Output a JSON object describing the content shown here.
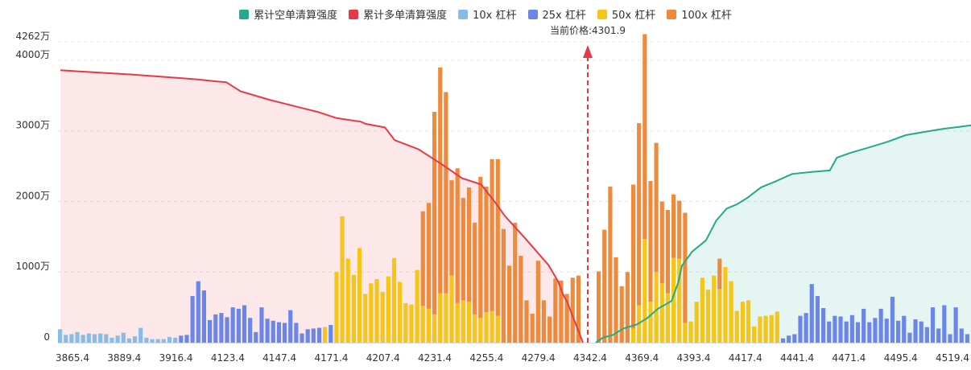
{
  "legend": [
    {
      "label": "累计空单清算强度",
      "color": "#26a98b"
    },
    {
      "label": "累计多单清算强度",
      "color": "#e63946"
    },
    {
      "label": "10x 杠杆",
      "color": "#86bde8"
    },
    {
      "label": "25x 杠杆",
      "color": "#6b86e8"
    },
    {
      "label": "50x 杠杆",
      "color": "#f5c518"
    },
    {
      "label": "100x 杠杆",
      "color": "#ee8a3c"
    }
  ],
  "current_price_label": "当前价格:4301.9",
  "chart_data": {
    "type": "bar",
    "title": "",
    "ymax_label": "4262万",
    "ylim": [
      0,
      4262
    ],
    "y_ticks": [
      {
        "value": 0,
        "label": "0"
      },
      {
        "value": 1000,
        "label": "1000万"
      },
      {
        "value": 2000,
        "label": "2000万"
      },
      {
        "value": 3000,
        "label": "3000万"
      },
      {
        "value": 4000,
        "label": "4000万"
      }
    ],
    "x_ticks": [
      "3865.4",
      "3889.4",
      "3916.4",
      "4123.4",
      "4147.4",
      "4171.4",
      "4207.4",
      "4231.4",
      "4255.4",
      "4279.4",
      "4342.4",
      "4369.4",
      "4393.4",
      "4417.4",
      "4441.4",
      "4471.4",
      "4495.4",
      "4519.4"
    ],
    "current_price": 4301.9,
    "current_price_index": 91,
    "bars": [
      {
        "s": [
          190,
          0,
          0,
          0
        ]
      },
      {
        "s": [
          110,
          0,
          0,
          0
        ]
      },
      {
        "s": [
          120,
          0,
          0,
          0
        ]
      },
      {
        "s": [
          150,
          0,
          0,
          0
        ]
      },
      {
        "s": [
          110,
          0,
          0,
          0
        ]
      },
      {
        "s": [
          130,
          0,
          0,
          0
        ]
      },
      {
        "s": [
          120,
          0,
          0,
          0
        ]
      },
      {
        "s": [
          130,
          0,
          0,
          0
        ]
      },
      {
        "s": [
          120,
          0,
          0,
          0
        ]
      },
      {
        "s": [
          70,
          0,
          0,
          0
        ]
      },
      {
        "s": [
          100,
          0,
          0,
          0
        ]
      },
      {
        "s": [
          140,
          0,
          0,
          0
        ]
      },
      {
        "s": [
          60,
          0,
          0,
          0
        ]
      },
      {
        "s": [
          90,
          0,
          0,
          0
        ]
      },
      {
        "s": [
          210,
          0,
          0,
          0
        ]
      },
      {
        "s": [
          70,
          0,
          0,
          0
        ]
      },
      {
        "s": [
          50,
          0,
          0,
          0
        ]
      },
      {
        "s": [
          50,
          0,
          0,
          0
        ]
      },
      {
        "s": [
          50,
          0,
          0,
          0
        ]
      },
      {
        "s": [
          80,
          0,
          0,
          0
        ]
      },
      {
        "s": [
          70,
          0,
          0,
          0
        ]
      },
      {
        "s": [
          0,
          100,
          0,
          0
        ]
      },
      {
        "s": [
          0,
          110,
          0,
          0
        ]
      },
      {
        "s": [
          0,
          660,
          0,
          0
        ]
      },
      {
        "s": [
          0,
          870,
          0,
          0
        ]
      },
      {
        "s": [
          0,
          740,
          0,
          0
        ]
      },
      {
        "s": [
          0,
          320,
          0,
          0
        ]
      },
      {
        "s": [
          0,
          400,
          0,
          0
        ]
      },
      {
        "s": [
          0,
          420,
          0,
          0
        ]
      },
      {
        "s": [
          0,
          360,
          0,
          0
        ]
      },
      {
        "s": [
          0,
          500,
          0,
          0
        ]
      },
      {
        "s": [
          0,
          480,
          0,
          0
        ]
      },
      {
        "s": [
          0,
          530,
          0,
          0
        ]
      },
      {
        "s": [
          0,
          350,
          0,
          0
        ]
      },
      {
        "s": [
          0,
          150,
          0,
          0
        ]
      },
      {
        "s": [
          0,
          500,
          0,
          0
        ]
      },
      {
        "s": [
          0,
          340,
          0,
          0
        ]
      },
      {
        "s": [
          0,
          310,
          0,
          0
        ]
      },
      {
        "s": [
          0,
          290,
          0,
          0
        ]
      },
      {
        "s": [
          0,
          280,
          0,
          0
        ]
      },
      {
        "s": [
          0,
          460,
          0,
          0
        ]
      },
      {
        "s": [
          0,
          280,
          0,
          0
        ]
      },
      {
        "s": [
          0,
          130,
          0,
          0
        ]
      },
      {
        "s": [
          0,
          190,
          0,
          0
        ]
      },
      {
        "s": [
          0,
          200,
          0,
          0
        ]
      },
      {
        "s": [
          0,
          210,
          0,
          0
        ]
      },
      {
        "s": [
          0,
          0,
          220,
          0
        ]
      },
      {
        "s": [
          0,
          250,
          0,
          0
        ]
      },
      {
        "s": [
          0,
          0,
          1000,
          0
        ]
      },
      {
        "s": [
          0,
          0,
          1790,
          0
        ]
      },
      {
        "s": [
          0,
          0,
          1190,
          0
        ]
      },
      {
        "s": [
          0,
          0,
          960,
          0
        ]
      },
      {
        "s": [
          0,
          0,
          1340,
          0
        ]
      },
      {
        "s": [
          0,
          0,
          690,
          0
        ]
      },
      {
        "s": [
          0,
          0,
          840,
          0
        ]
      },
      {
        "s": [
          0,
          0,
          900,
          0
        ]
      },
      {
        "s": [
          0,
          0,
          720,
          0
        ]
      },
      {
        "s": [
          0,
          0,
          940,
          0
        ]
      },
      {
        "s": [
          0,
          0,
          1200,
          0
        ]
      },
      {
        "s": [
          0,
          0,
          860,
          0
        ]
      },
      {
        "s": [
          0,
          0,
          560,
          0
        ]
      },
      {
        "s": [
          0,
          0,
          540,
          0
        ]
      },
      {
        "s": [
          0,
          0,
          1030,
          0
        ]
      },
      {
        "s": [
          0,
          0,
          520,
          1340
        ]
      },
      {
        "s": [
          0,
          0,
          480,
          1500
        ]
      },
      {
        "s": [
          0,
          0,
          400,
          2870
        ]
      },
      {
        "s": [
          0,
          0,
          700,
          3200
        ]
      },
      {
        "s": [
          0,
          0,
          700,
          2850
        ]
      },
      {
        "s": [
          0,
          0,
          950,
          1350
        ]
      },
      {
        "s": [
          0,
          0,
          560,
          1910
        ]
      },
      {
        "s": [
          0,
          0,
          600,
          1450
        ]
      },
      {
        "s": [
          0,
          0,
          580,
          1620
        ]
      },
      {
        "s": [
          0,
          0,
          400,
          1300
        ]
      },
      {
        "s": [
          0,
          0,
          350,
          2000
        ]
      },
      {
        "s": [
          0,
          0,
          430,
          1780
        ]
      },
      {
        "s": [
          0,
          0,
          450,
          2150
        ]
      },
      {
        "s": [
          0,
          0,
          380,
          2220
        ]
      },
      {
        "s": [
          0,
          0,
          0,
          1610
        ]
      },
      {
        "s": [
          0,
          0,
          0,
          1090
        ]
      },
      {
        "s": [
          0,
          0,
          0,
          1700
        ]
      },
      {
        "s": [
          0,
          0,
          0,
          1230
        ]
      },
      {
        "s": [
          0,
          0,
          0,
          600
        ]
      },
      {
        "s": [
          0,
          0,
          0,
          410
        ]
      },
      {
        "s": [
          0,
          0,
          0,
          1160
        ]
      },
      {
        "s": [
          0,
          0,
          0,
          600
        ]
      },
      {
        "s": [
          0,
          0,
          0,
          370
        ]
      },
      {
        "s": [
          0,
          0,
          0,
          910
        ]
      },
      {
        "s": [
          0,
          0,
          0,
          880
        ]
      },
      {
        "s": [
          0,
          0,
          0,
          690
        ]
      },
      {
        "s": [
          0,
          0,
          0,
          920
        ]
      },
      {
        "s": [
          0,
          0,
          0,
          950
        ]
      },
      {
        "s": [
          0,
          0,
          0,
          1010
        ]
      },
      {
        "s": [
          0,
          0,
          0,
          1600
        ]
      },
      {
        "s": [
          0,
          0,
          0,
          2210
        ]
      },
      {
        "s": [
          0,
          0,
          0,
          1210
        ]
      },
      {
        "s": [
          0,
          0,
          0,
          800
        ]
      },
      {
        "s": [
          0,
          0,
          0,
          1000
        ]
      },
      {
        "s": [
          0,
          0,
          200,
          2040
        ]
      },
      {
        "s": [
          0,
          0,
          530,
          2580
        ]
      },
      {
        "s": [
          0,
          0,
          1470,
          2900
        ]
      },
      {
        "s": [
          0,
          0,
          580,
          1710
        ]
      },
      {
        "s": [
          0,
          0,
          1000,
          1830
        ]
      },
      {
        "s": [
          0,
          0,
          840,
          1160
        ]
      },
      {
        "s": [
          0,
          0,
          700,
          1180
        ]
      },
      {
        "s": [
          0,
          0,
          1200,
          900
        ]
      },
      {
        "s": [
          0,
          0,
          1190,
          820
        ]
      },
      {
        "s": [
          0,
          0,
          280,
          1560
        ]
      },
      {
        "s": [
          0,
          0,
          300,
          0
        ]
      },
      {
        "s": [
          0,
          0,
          580,
          0
        ]
      },
      {
        "s": [
          0,
          0,
          920,
          0
        ]
      },
      {
        "s": [
          0,
          0,
          750,
          0
        ]
      },
      {
        "s": [
          0,
          0,
          950,
          0
        ]
      },
      {
        "s": [
          0,
          0,
          760,
          430
        ]
      },
      {
        "s": [
          0,
          0,
          1070,
          0
        ]
      },
      {
        "s": [
          0,
          0,
          870,
          0
        ]
      },
      {
        "s": [
          0,
          0,
          450,
          0
        ]
      },
      {
        "s": [
          0,
          0,
          580,
          0
        ]
      },
      {
        "s": [
          0,
          0,
          600,
          0
        ]
      },
      {
        "s": [
          0,
          0,
          230,
          0
        ]
      },
      {
        "s": [
          0,
          0,
          370,
          0
        ]
      },
      {
        "s": [
          0,
          0,
          380,
          0
        ]
      },
      {
        "s": [
          0,
          0,
          390,
          0
        ]
      },
      {
        "s": [
          0,
          0,
          440,
          0
        ]
      },
      {
        "s": [
          0,
          60,
          0,
          0
        ]
      },
      {
        "s": [
          0,
          100,
          0,
          0
        ]
      },
      {
        "s": [
          0,
          120,
          0,
          0
        ]
      },
      {
        "s": [
          0,
          380,
          0,
          0
        ]
      },
      {
        "s": [
          0,
          420,
          0,
          0
        ]
      },
      {
        "s": [
          0,
          830,
          0,
          0
        ]
      },
      {
        "s": [
          0,
          660,
          0,
          0
        ]
      },
      {
        "s": [
          0,
          490,
          0,
          0
        ]
      },
      {
        "s": [
          0,
          300,
          0,
          0
        ]
      },
      {
        "s": [
          0,
          380,
          0,
          0
        ]
      },
      {
        "s": [
          0,
          370,
          0,
          0
        ]
      },
      {
        "s": [
          0,
          300,
          0,
          0
        ]
      },
      {
        "s": [
          0,
          390,
          0,
          0
        ]
      },
      {
        "s": [
          0,
          290,
          0,
          0
        ]
      },
      {
        "s": [
          0,
          480,
          0,
          0
        ]
      },
      {
        "s": [
          0,
          290,
          0,
          0
        ]
      },
      {
        "s": [
          0,
          350,
          0,
          0
        ]
      },
      {
        "s": [
          0,
          480,
          0,
          0
        ]
      },
      {
        "s": [
          0,
          340,
          0,
          0
        ]
      },
      {
        "s": [
          0,
          650,
          0,
          0
        ]
      },
      {
        "s": [
          0,
          310,
          0,
          0
        ]
      },
      {
        "s": [
          0,
          380,
          0,
          0
        ]
      },
      {
        "s": [
          0,
          140,
          0,
          0
        ]
      },
      {
        "s": [
          0,
          330,
          0,
          0
        ]
      },
      {
        "s": [
          0,
          300,
          0,
          0
        ]
      },
      {
        "s": [
          0,
          220,
          0,
          0
        ]
      },
      {
        "s": [
          0,
          500,
          0,
          0
        ]
      },
      {
        "s": [
          0,
          200,
          0,
          0
        ]
      },
      {
        "s": [
          0,
          530,
          0,
          0
        ]
      },
      {
        "s": [
          0,
          120,
          0,
          0
        ]
      },
      {
        "s": [
          0,
          500,
          0,
          0
        ]
      },
      {
        "s": [
          0,
          200,
          0,
          0
        ]
      },
      {
        "s": [
          0,
          120,
          0,
          0
        ]
      }
    ],
    "long_cum": [
      [
        0,
        3860
      ],
      [
        5,
        3840
      ],
      [
        15,
        3800
      ],
      [
        25,
        3750
      ],
      [
        29,
        3730
      ],
      [
        33,
        3700
      ],
      [
        35,
        3690
      ],
      [
        38,
        3560
      ],
      [
        44,
        3440
      ],
      [
        51,
        3320
      ],
      [
        54,
        3270
      ],
      [
        58,
        3180
      ],
      [
        63,
        3130
      ],
      [
        64,
        3100
      ],
      [
        68,
        3050
      ],
      [
        70,
        2870
      ],
      [
        75,
        2740
      ],
      [
        80,
        2520
      ],
      [
        84,
        2330
      ],
      [
        88,
        2240
      ],
      [
        91,
        1980
      ],
      [
        93,
        1790
      ],
      [
        97,
        1490
      ],
      [
        102,
        1100
      ],
      [
        104,
        870
      ],
      [
        105,
        690
      ],
      [
        106,
        560
      ],
      [
        107,
        380
      ],
      [
        108,
        210
      ],
      [
        109,
        0
      ]
    ],
    "short_cum": [
      [
        0,
        0
      ],
      [
        2,
        70
      ],
      [
        5,
        110
      ],
      [
        8,
        200
      ],
      [
        12,
        260
      ],
      [
        15,
        350
      ],
      [
        18,
        480
      ],
      [
        22,
        590
      ],
      [
        24,
        860
      ],
      [
        25,
        1090
      ],
      [
        28,
        1290
      ],
      [
        32,
        1450
      ],
      [
        35,
        1730
      ],
      [
        38,
        1900
      ],
      [
        41,
        1960
      ],
      [
        44,
        2050
      ],
      [
        48,
        2200
      ],
      [
        52,
        2280
      ],
      [
        57,
        2390
      ],
      [
        63,
        2420
      ],
      [
        68,
        2440
      ],
      [
        70,
        2620
      ],
      [
        74,
        2690
      ],
      [
        79,
        2760
      ],
      [
        85,
        2850
      ],
      [
        90,
        2940
      ],
      [
        96,
        2990
      ],
      [
        101,
        3030
      ],
      [
        106,
        3060
      ],
      [
        109,
        3080
      ]
    ]
  }
}
